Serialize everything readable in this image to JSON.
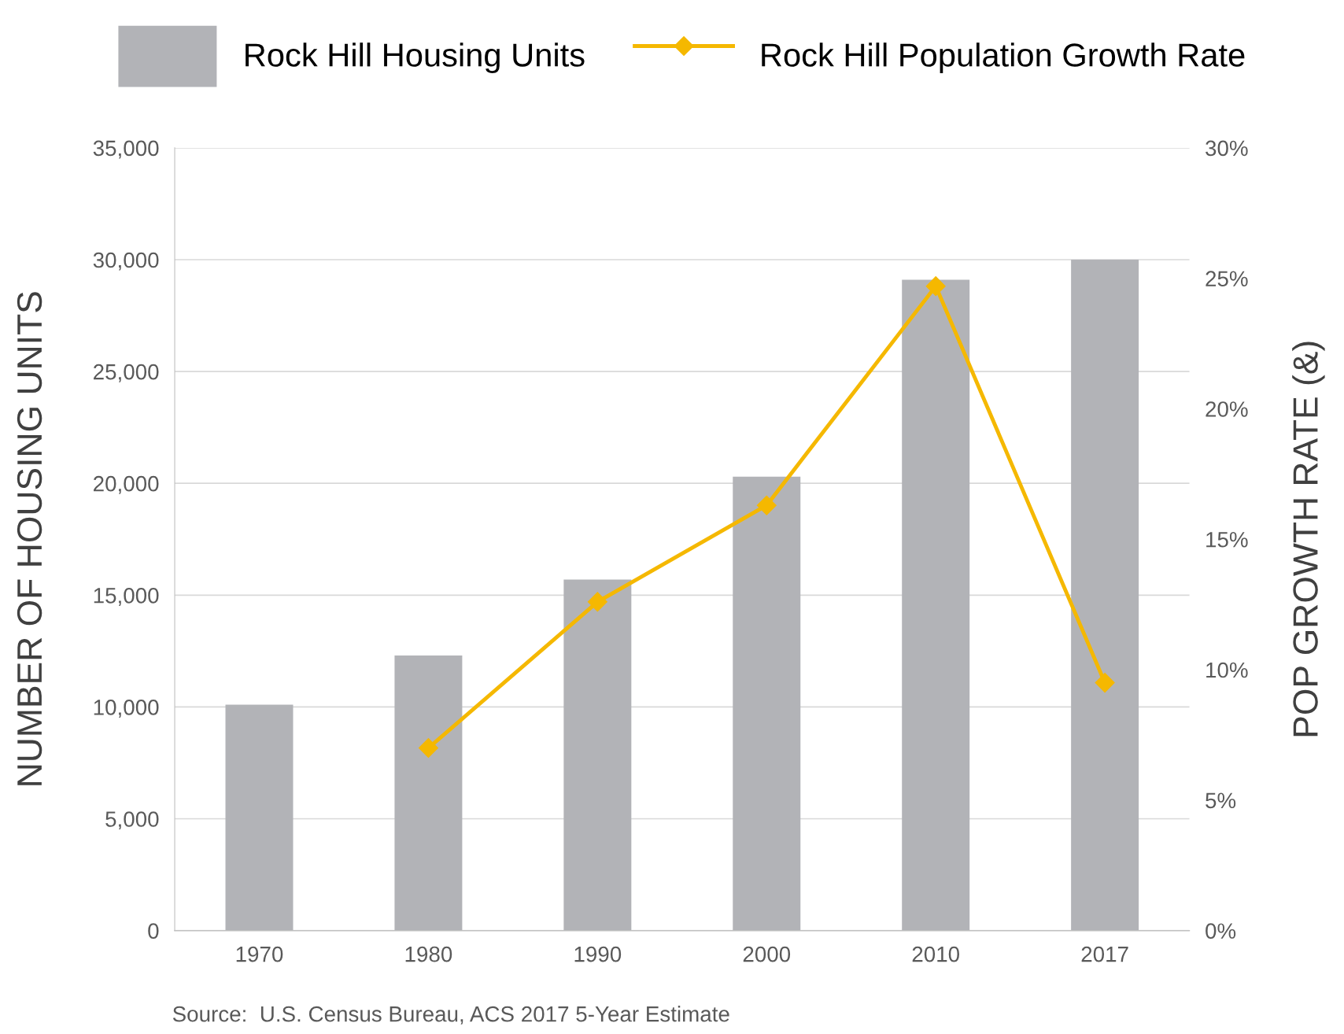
{
  "chart_data": {
    "type": "bar",
    "categories": [
      "1970",
      "1980",
      "1990",
      "2000",
      "2010",
      "2017"
    ],
    "series": [
      {
        "name": "Rock Hill Housing Units",
        "color": "#b2b3b7",
        "values": [
          10100,
          12300,
          15700,
          20300,
          29100,
          30000
        ]
      },
      {
        "name": "Rock Hill Population Growth Rate",
        "type": "line",
        "axis": "y2",
        "color": "#f5b800",
        "marker": "diamond",
        "line_style": "solid",
        "values": [
          null,
          7.0,
          12.6,
          16.3,
          24.7,
          9.5
        ]
      }
    ],
    "ylabel": "NUMBER OF HOUSING UNITS",
    "y2label": "POP GROWTH RATE (&)",
    "ylim": [
      0,
      35000
    ],
    "yticks": [
      {
        "value": 0,
        "label": "0"
      },
      {
        "value": 5000,
        "label": "5,000"
      },
      {
        "value": 10000,
        "label": "10,000"
      },
      {
        "value": 15000,
        "label": "15,000"
      },
      {
        "value": 20000,
        "label": "20,000"
      },
      {
        "value": 25000,
        "label": "25,000"
      },
      {
        "value": 30000,
        "label": "30,000"
      },
      {
        "value": 35000,
        "label": "35,000"
      }
    ],
    "y2lim": [
      0,
      30
    ],
    "y2ticks": [
      {
        "value": 0,
        "label": "0%"
      },
      {
        "value": 5,
        "label": "5%"
      },
      {
        "value": 10,
        "label": "10%"
      },
      {
        "value": 15,
        "label": "15%"
      },
      {
        "value": 20,
        "label": "20%"
      },
      {
        "value": 25,
        "label": "25%"
      },
      {
        "value": 30,
        "label": "30%"
      }
    ],
    "grid": "y",
    "legend": "top",
    "annotations": [
      "Source:  U.S. Census Bureau, ACS 2017 5-Year Estimate"
    ]
  }
}
